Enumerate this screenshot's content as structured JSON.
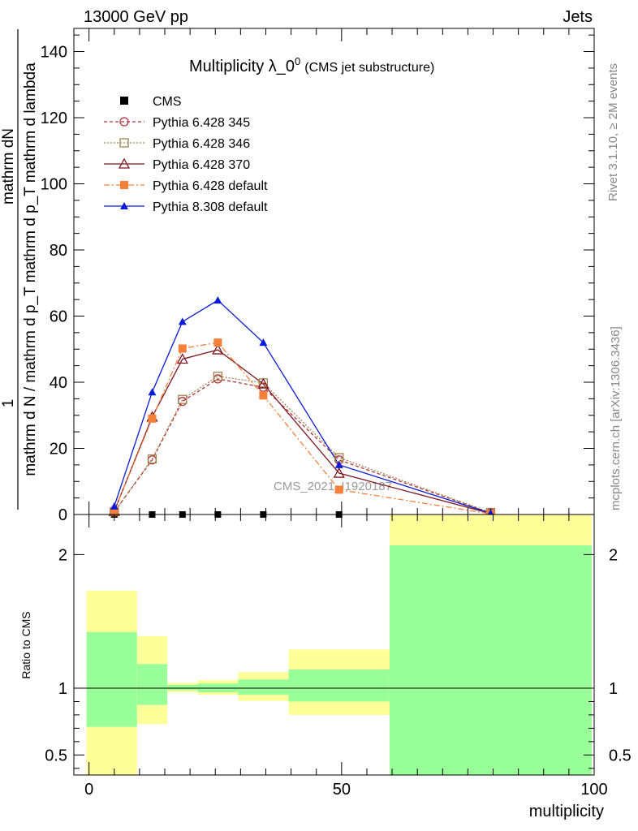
{
  "header": {
    "left": "13000 GeV pp",
    "right": "Jets"
  },
  "side_labels": {
    "rivet": "Rivet 3.1.10, ≥ 2M events",
    "mcplots": "mcplots.cern.ch [arXiv:1306.3436]"
  },
  "watermark": "CMS_2021_I1920187",
  "chart_data": [
    {
      "type": "line",
      "title": "Multiplicity λ_0",
      "title_superscript": "0",
      "subtitle": "(CMS jet substructure)",
      "ylabel_numerator": "mathrm dN",
      "ylabel_numerator_prefix": "1",
      "ylabel_denominator": "mathrm d N / mathrm d p_T mathrm d p_T mathrm d lambda",
      "xlim": [
        -3,
        100
      ],
      "ylim": [
        0,
        147
      ],
      "yticks": [
        0,
        20,
        40,
        60,
        80,
        100,
        120,
        140
      ],
      "legend_position": "top-left",
      "series": [
        {
          "name": "CMS",
          "color": "#000000",
          "marker": "filled-square",
          "x": [
            5,
            12.5,
            18.5,
            25.5,
            34.5,
            49.5,
            79.5
          ],
          "y": [
            0,
            0,
            0,
            0,
            0,
            0,
            0
          ]
        },
        {
          "name": "Pythia 6.428 345",
          "color": "#b2333a",
          "marker": "open-circle",
          "dash": "4,3",
          "x": [
            5,
            12.5,
            18.5,
            25.5,
            34.5,
            49.5,
            79.5
          ],
          "y": [
            0.8,
            16.5,
            34.2,
            41.0,
            38.5,
            16.5,
            0.5
          ]
        },
        {
          "name": "Pythia 6.428 346",
          "color": "#a08450",
          "marker": "open-square",
          "dash": "2,2",
          "x": [
            5,
            12.5,
            18.5,
            25.5,
            34.5,
            49.5,
            79.5
          ],
          "y": [
            0.8,
            16.8,
            34.8,
            41.8,
            39.8,
            17.2,
            0.6
          ]
        },
        {
          "name": "Pythia 6.428 370",
          "color": "#7a1620",
          "marker": "open-triangle",
          "dash": "",
          "x": [
            5,
            12.5,
            18.5,
            25.5,
            34.5,
            49.5,
            79.5
          ],
          "y": [
            1.0,
            29.5,
            47.0,
            49.8,
            39.5,
            12.5,
            0.3
          ]
        },
        {
          "name": "Pythia 6.428 default",
          "color": "#f5803a",
          "marker": "filled-square",
          "dash": "7,3,2,3",
          "x": [
            5,
            12.5,
            18.5,
            25.5,
            34.5,
            49.5,
            79.5
          ],
          "y": [
            1.0,
            29.0,
            50.2,
            52.0,
            36.0,
            7.5,
            0.2
          ]
        },
        {
          "name": "Pythia 8.308 default",
          "color": "#0a1ad6",
          "marker": "filled-triangle",
          "dash": "",
          "x": [
            5,
            12.5,
            18.5,
            25.5,
            34.5,
            49.5,
            79.5
          ],
          "y": [
            2.5,
            37.0,
            58.3,
            64.8,
            52.0,
            15.0,
            0.4
          ]
        }
      ]
    },
    {
      "type": "area",
      "ylabel": "Ratio to CMS",
      "xlabel": "multiplicity",
      "xlim": [
        -3,
        100
      ],
      "ylim": [
        0.35,
        2.3
      ],
      "xticks": [
        0,
        50,
        100
      ],
      "yticks": [
        0.5,
        1,
        2
      ],
      "reference_line": 1,
      "bands": [
        {
          "x0": -0.5,
          "x1": 9.5,
          "yellow_low": 0.35,
          "yellow_high": 1.73,
          "green_low": 0.71,
          "green_high": 1.42
        },
        {
          "x0": 9.5,
          "x1": 15.5,
          "yellow_low": 0.73,
          "yellow_high": 1.39,
          "green_low": 0.875,
          "green_high": 1.18
        },
        {
          "x0": 15.5,
          "x1": 21.5,
          "yellow_low": 0.97,
          "yellow_high": 1.04,
          "green_low": 0.985,
          "green_high": 1.025
        },
        {
          "x0": 21.5,
          "x1": 29.5,
          "yellow_low": 0.95,
          "yellow_high": 1.06,
          "green_low": 0.97,
          "green_high": 1.035
        },
        {
          "x0": 29.5,
          "x1": 39.5,
          "yellow_low": 0.905,
          "yellow_high": 1.12,
          "green_low": 0.95,
          "green_high": 1.065
        },
        {
          "x0": 39.5,
          "x1": 59.5,
          "yellow_low": 0.8,
          "yellow_high": 1.29,
          "green_low": 0.9,
          "green_high": 1.14
        },
        {
          "x0": 59.5,
          "x1": 99.5,
          "yellow_low": 0.35,
          "yellow_high": 2.3,
          "green_low": 0.35,
          "green_high": 2.07
        }
      ],
      "band_colors": {
        "yellow": "#ffff99",
        "green": "#99ff99"
      }
    }
  ]
}
